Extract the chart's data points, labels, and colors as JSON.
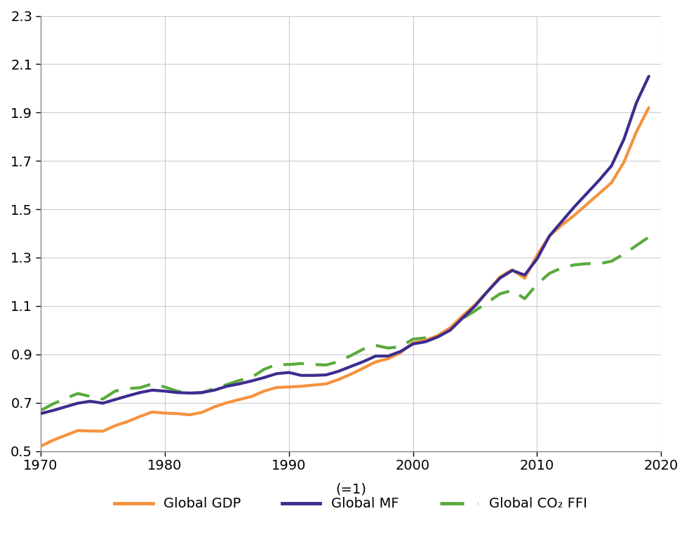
{
  "years": [
    1970,
    1971,
    1972,
    1973,
    1974,
    1975,
    1976,
    1977,
    1978,
    1979,
    1980,
    1981,
    1982,
    1983,
    1984,
    1985,
    1986,
    1987,
    1988,
    1989,
    1990,
    1991,
    1992,
    1993,
    1994,
    1995,
    1996,
    1997,
    1998,
    1999,
    2000,
    2001,
    2002,
    2003,
    2004,
    2005,
    2006,
    2007,
    2008,
    2009,
    2010,
    2011,
    2012,
    2013,
    2014,
    2015,
    2016,
    2017,
    2018,
    2019
  ],
  "gdp": [
    0.52,
    0.545,
    0.565,
    0.585,
    0.583,
    0.582,
    0.605,
    0.622,
    0.643,
    0.662,
    0.657,
    0.655,
    0.65,
    0.66,
    0.683,
    0.7,
    0.713,
    0.726,
    0.748,
    0.763,
    0.765,
    0.768,
    0.773,
    0.778,
    0.796,
    0.818,
    0.843,
    0.869,
    0.882,
    0.907,
    0.948,
    0.958,
    0.978,
    1.01,
    1.06,
    1.105,
    1.16,
    1.22,
    1.25,
    1.215,
    1.31,
    1.39,
    1.435,
    1.475,
    1.52,
    1.565,
    1.61,
    1.695,
    1.82,
    1.92
  ],
  "mf": [
    0.655,
    0.668,
    0.683,
    0.698,
    0.706,
    0.698,
    0.713,
    0.728,
    0.742,
    0.752,
    0.748,
    0.742,
    0.74,
    0.742,
    0.752,
    0.768,
    0.778,
    0.79,
    0.804,
    0.82,
    0.825,
    0.813,
    0.813,
    0.815,
    0.83,
    0.85,
    0.87,
    0.893,
    0.893,
    0.912,
    0.943,
    0.952,
    0.972,
    1.0,
    1.05,
    1.1,
    1.16,
    1.215,
    1.247,
    1.228,
    1.295,
    1.39,
    1.45,
    1.51,
    1.565,
    1.62,
    1.68,
    1.79,
    1.94,
    2.05
  ],
  "co2": [
    0.668,
    0.695,
    0.718,
    0.738,
    0.726,
    0.715,
    0.748,
    0.758,
    0.762,
    0.778,
    0.765,
    0.748,
    0.738,
    0.742,
    0.758,
    0.775,
    0.792,
    0.805,
    0.838,
    0.858,
    0.858,
    0.862,
    0.858,
    0.856,
    0.87,
    0.895,
    0.922,
    0.937,
    0.926,
    0.932,
    0.963,
    0.968,
    0.978,
    1.008,
    1.048,
    1.08,
    1.115,
    1.15,
    1.165,
    1.13,
    1.19,
    1.235,
    1.258,
    1.27,
    1.275,
    1.275,
    1.285,
    1.315,
    1.35,
    1.385
  ],
  "gdp_color": "#F5923E",
  "mf_color": "#3C2D8F",
  "co2_color": "#5aaa3c",
  "xlim": [
    1970,
    2020
  ],
  "ylim": [
    0.5,
    2.3
  ],
  "yticks": [
    0.5,
    0.7,
    0.9,
    1.1,
    1.3,
    1.5,
    1.7,
    1.9,
    2.1,
    2.3
  ],
  "xticks": [
    1970,
    1980,
    1990,
    2000,
    2010,
    2020
  ],
  "xlabel": "(=1)",
  "legend_labels": [
    "Global GDP",
    "Global MF",
    "Global CO₂ FFI"
  ],
  "gdp_linewidth": 3.0,
  "mf_linewidth": 3.0,
  "co2_linewidth": 3.0,
  "background_color": "#ffffff",
  "grid_color": "#cccccc",
  "spine_color": "#888888"
}
